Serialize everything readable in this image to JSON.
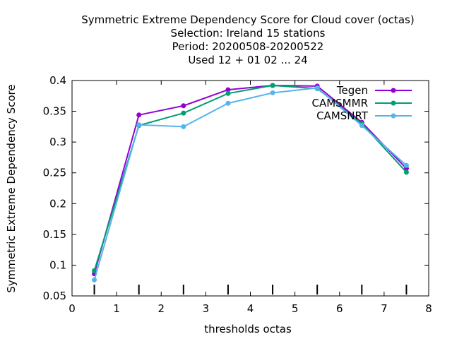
{
  "chart_data": {
    "type": "line",
    "title_lines": [
      "Symmetric Extreme Dependency Score  for Cloud cover (octas)",
      "Selection: Ireland     15 stations",
      "Period: 20200508-20200522",
      "Used  12 + 01 02 ... 24"
    ],
    "xlabel": "thresholds octas",
    "ylabel": "Symmetric Extreme Dependency Score",
    "xlim": [
      0,
      8
    ],
    "ylim": [
      0.05,
      0.4
    ],
    "xticks": [
      "0",
      "1",
      "2",
      "3",
      "4",
      "5",
      "6",
      "7",
      "8"
    ],
    "yticks": [
      "0.05",
      "0.1",
      "0.15",
      "0.2",
      "0.25",
      "0.3",
      "0.35",
      "0.4"
    ],
    "grid": false,
    "legend_position": "top-right",
    "x": [
      0.5,
      1.5,
      2.5,
      3.5,
      4.5,
      5.5,
      6.5,
      7.5
    ],
    "series": [
      {
        "name": "Tegen",
        "color": "#9400d3",
        "values": [
          0.086,
          0.344,
          0.359,
          0.385,
          0.392,
          0.391,
          0.332,
          0.257
        ]
      },
      {
        "name": "CAMSMMR",
        "color": "#009e73",
        "values": [
          0.091,
          0.327,
          0.347,
          0.379,
          0.392,
          0.387,
          0.33,
          0.251
        ]
      },
      {
        "name": "CAMSNRT",
        "color": "#56b4e9",
        "values": [
          0.076,
          0.328,
          0.325,
          0.363,
          0.38,
          0.388,
          0.327,
          0.262
        ]
      }
    ]
  }
}
